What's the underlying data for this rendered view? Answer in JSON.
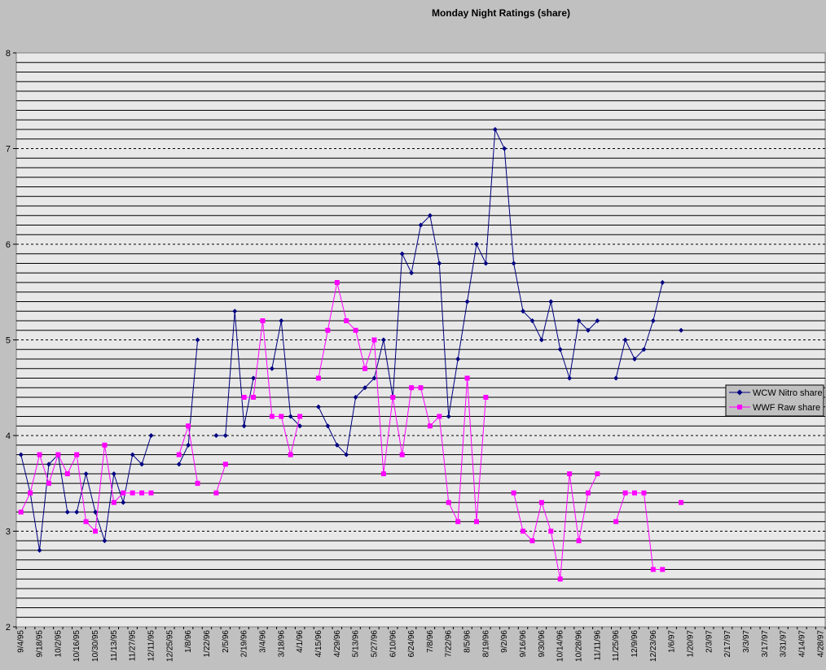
{
  "chart_data": {
    "type": "line",
    "title": "Monday Night Ratings (share)",
    "xlabel": "",
    "ylabel": "",
    "ylim": [
      2,
      8
    ],
    "y_major_ticks": [
      2,
      3,
      4,
      5,
      6,
      7,
      8
    ],
    "y_minor_step": 0.1,
    "grid": true,
    "legend_position": "right",
    "categories": [
      "9/4/95",
      "9/11/95",
      "9/18/95",
      "9/25/95",
      "10/2/95",
      "10/9/95",
      "10/16/95",
      "10/23/95",
      "10/30/95",
      "11/6/95",
      "11/13/95",
      "11/20/95",
      "11/27/95",
      "12/4/95",
      "12/11/95",
      "12/18/95",
      "12/25/95",
      "1/1/96",
      "1/8/96",
      "1/15/96",
      "1/22/96",
      "1/29/96",
      "2/5/96",
      "2/12/96",
      "2/19/96",
      "2/26/96",
      "3/4/96",
      "3/11/96",
      "3/18/96",
      "3/25/96",
      "4/1/96",
      "4/8/96",
      "4/15/96",
      "4/22/96",
      "4/29/96",
      "5/6/96",
      "5/13/96",
      "5/20/96",
      "5/27/96",
      "6/3/96",
      "6/10/96",
      "6/17/96",
      "6/24/96",
      "7/1/96",
      "7/8/96",
      "7/15/96",
      "7/22/96",
      "7/29/96",
      "8/5/96",
      "8/12/96",
      "8/19/96",
      "8/26/96",
      "9/2/96",
      "9/9/96",
      "9/16/96",
      "9/23/96",
      "9/30/96",
      "10/7/96",
      "10/14/96",
      "10/21/96",
      "10/28/96",
      "11/4/96",
      "11/11/96",
      "11/18/96",
      "11/25/96",
      "12/2/96",
      "12/9/96",
      "12/16/96",
      "12/23/96",
      "12/30/96",
      "1/6/97",
      "1/13/97",
      "1/20/97",
      "1/27/97",
      "2/3/97",
      "2/10/97",
      "2/17/97",
      "2/24/97",
      "3/3/97",
      "3/10/97",
      "3/17/97",
      "3/24/97",
      "3/31/97",
      "4/7/97",
      "4/14/97",
      "4/21/97",
      "4/28/97"
    ],
    "tick_labels": [
      "9/4/95",
      "9/18/95",
      "10/2/95",
      "10/16/95",
      "10/30/95",
      "11/13/95",
      "11/27/95",
      "12/11/95",
      "12/25/95",
      "1/8/96",
      "1/22/96",
      "2/5/96",
      "2/19/96",
      "3/4/96",
      "3/18/96",
      "4/1/96",
      "4/15/96",
      "4/29/96",
      "5/13/96",
      "5/27/96",
      "6/10/96",
      "6/24/96",
      "7/8/96",
      "7/22/96",
      "8/5/96",
      "8/19/96",
      "9/2/96",
      "9/16/96",
      "9/30/96",
      "10/14/96",
      "10/28/96",
      "11/11/96",
      "11/25/96",
      "12/9/96",
      "12/23/96",
      "1/6/97",
      "1/20/97",
      "2/3/97",
      "2/17/97",
      "3/3/97",
      "3/17/97",
      "3/31/97",
      "4/14/97",
      "4/28/97"
    ],
    "series": [
      {
        "name": "WCW Nitro share",
        "color": "#000080",
        "marker": "diamond",
        "values": [
          3.8,
          3.4,
          2.8,
          3.7,
          3.8,
          3.2,
          3.2,
          3.6,
          3.2,
          2.9,
          3.6,
          3.3,
          3.8,
          3.7,
          4.0,
          null,
          null,
          3.7,
          3.9,
          5.0,
          null,
          4.0,
          4.0,
          5.3,
          4.1,
          4.6,
          null,
          4.7,
          5.2,
          4.2,
          4.1,
          null,
          4.3,
          4.1,
          3.9,
          3.8,
          4.4,
          4.5,
          4.6,
          5.0,
          4.4,
          5.9,
          5.7,
          6.2,
          6.3,
          5.8,
          4.2,
          4.8,
          5.4,
          6.0,
          5.8,
          7.2,
          7.0,
          5.8,
          5.3,
          5.2,
          5.0,
          5.4,
          4.9,
          4.6,
          5.2,
          5.1,
          5.2,
          null,
          4.6,
          5.0,
          4.8,
          4.9,
          5.2,
          5.6,
          null,
          5.1,
          null,
          null,
          null,
          null,
          null,
          null,
          null,
          null,
          null,
          null,
          null,
          null,
          null,
          null,
          null
        ]
      },
      {
        "name": "WWF Raw share",
        "color": "#ff00ff",
        "marker": "square",
        "values": [
          3.2,
          3.4,
          3.8,
          3.5,
          3.8,
          3.6,
          3.8,
          3.1,
          3.0,
          3.9,
          3.3,
          3.4,
          3.4,
          3.4,
          3.4,
          null,
          null,
          3.8,
          4.1,
          3.5,
          null,
          3.4,
          3.7,
          null,
          4.4,
          4.4,
          5.2,
          4.2,
          4.2,
          3.8,
          4.2,
          null,
          4.6,
          5.1,
          5.6,
          5.2,
          5.1,
          4.7,
          5.0,
          3.6,
          4.4,
          3.8,
          4.5,
          4.5,
          4.1,
          4.2,
          3.3,
          3.1,
          4.6,
          3.1,
          4.4,
          null,
          null,
          3.4,
          3.0,
          2.9,
          3.3,
          3.0,
          2.5,
          3.6,
          2.9,
          3.4,
          3.6,
          null,
          3.1,
          3.4,
          3.4,
          3.4,
          2.6,
          2.6,
          null,
          3.3,
          null,
          null,
          null,
          null,
          null,
          null,
          null,
          null,
          null,
          null,
          null,
          null,
          null,
          null,
          null
        ]
      }
    ],
    "plot_background": "#e8e8e8",
    "figure_background": "#c0c0c0"
  }
}
